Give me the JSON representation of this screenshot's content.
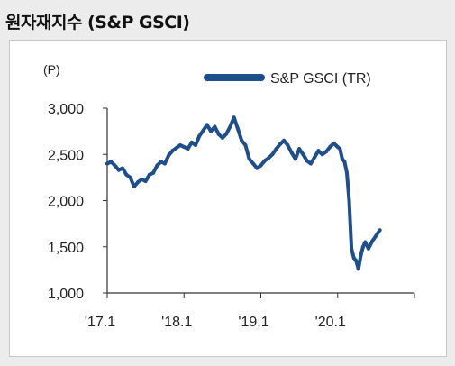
{
  "title": "원자재지수 (S&P GSCI)",
  "chart_data": {
    "type": "line",
    "ylabel": "(P)",
    "ylim": [
      1000,
      3000
    ],
    "yticks": [
      1000,
      1500,
      2000,
      2500,
      3000
    ],
    "ytick_labels": [
      "1,000",
      "1,500",
      "2,000",
      "2,500",
      "3,000"
    ],
    "xlim": [
      2017.0,
      2021.0
    ],
    "xticks": [
      2017.0,
      2018.0,
      2019.0,
      2020.0
    ],
    "xtick_labels": [
      "'17.1",
      "'18.1",
      "'19.1",
      "'20.1"
    ],
    "legend_position": "top-right",
    "grid": false,
    "series": [
      {
        "name": "S&P GSCI (TR)",
        "color": "#1f4e8c",
        "x": [
          2017.0,
          2017.05,
          2017.1,
          2017.15,
          2017.2,
          2017.25,
          2017.3,
          2017.35,
          2017.4,
          2017.45,
          2017.5,
          2017.55,
          2017.6,
          2017.65,
          2017.7,
          2017.75,
          2017.8,
          2017.85,
          2017.9,
          2017.95,
          2018.0,
          2018.05,
          2018.1,
          2018.15,
          2018.2,
          2018.25,
          2018.3,
          2018.35,
          2018.4,
          2018.45,
          2018.5,
          2018.55,
          2018.6,
          2018.65,
          2018.7,
          2018.75,
          2018.8,
          2018.85,
          2018.9,
          2018.95,
          2019.0,
          2019.05,
          2019.1,
          2019.15,
          2019.2,
          2019.25,
          2019.3,
          2019.35,
          2019.4,
          2019.45,
          2019.5,
          2019.55,
          2019.6,
          2019.65,
          2019.7,
          2019.75,
          2019.8,
          2019.85,
          2019.9,
          2019.95,
          2020.0,
          2020.03,
          2020.06,
          2020.09,
          2020.12,
          2020.15,
          2020.18,
          2020.21,
          2020.24,
          2020.27,
          2020.3,
          2020.33,
          2020.36,
          2020.4,
          2020.45,
          2020.5,
          2020.55
        ],
        "values": [
          2400,
          2420,
          2380,
          2330,
          2350,
          2280,
          2250,
          2150,
          2200,
          2230,
          2210,
          2280,
          2300,
          2380,
          2420,
          2400,
          2490,
          2540,
          2570,
          2600,
          2580,
          2560,
          2630,
          2600,
          2700,
          2760,
          2820,
          2750,
          2800,
          2720,
          2680,
          2720,
          2800,
          2900,
          2780,
          2650,
          2600,
          2450,
          2400,
          2350,
          2380,
          2430,
          2460,
          2500,
          2560,
          2610,
          2650,
          2600,
          2520,
          2450,
          2560,
          2500,
          2430,
          2400,
          2470,
          2540,
          2500,
          2530,
          2580,
          2620,
          2580,
          2560,
          2450,
          2420,
          2300,
          2000,
          1480,
          1380,
          1350,
          1260,
          1400,
          1500,
          1550,
          1480,
          1560,
          1620,
          1680
        ]
      }
    ]
  }
}
